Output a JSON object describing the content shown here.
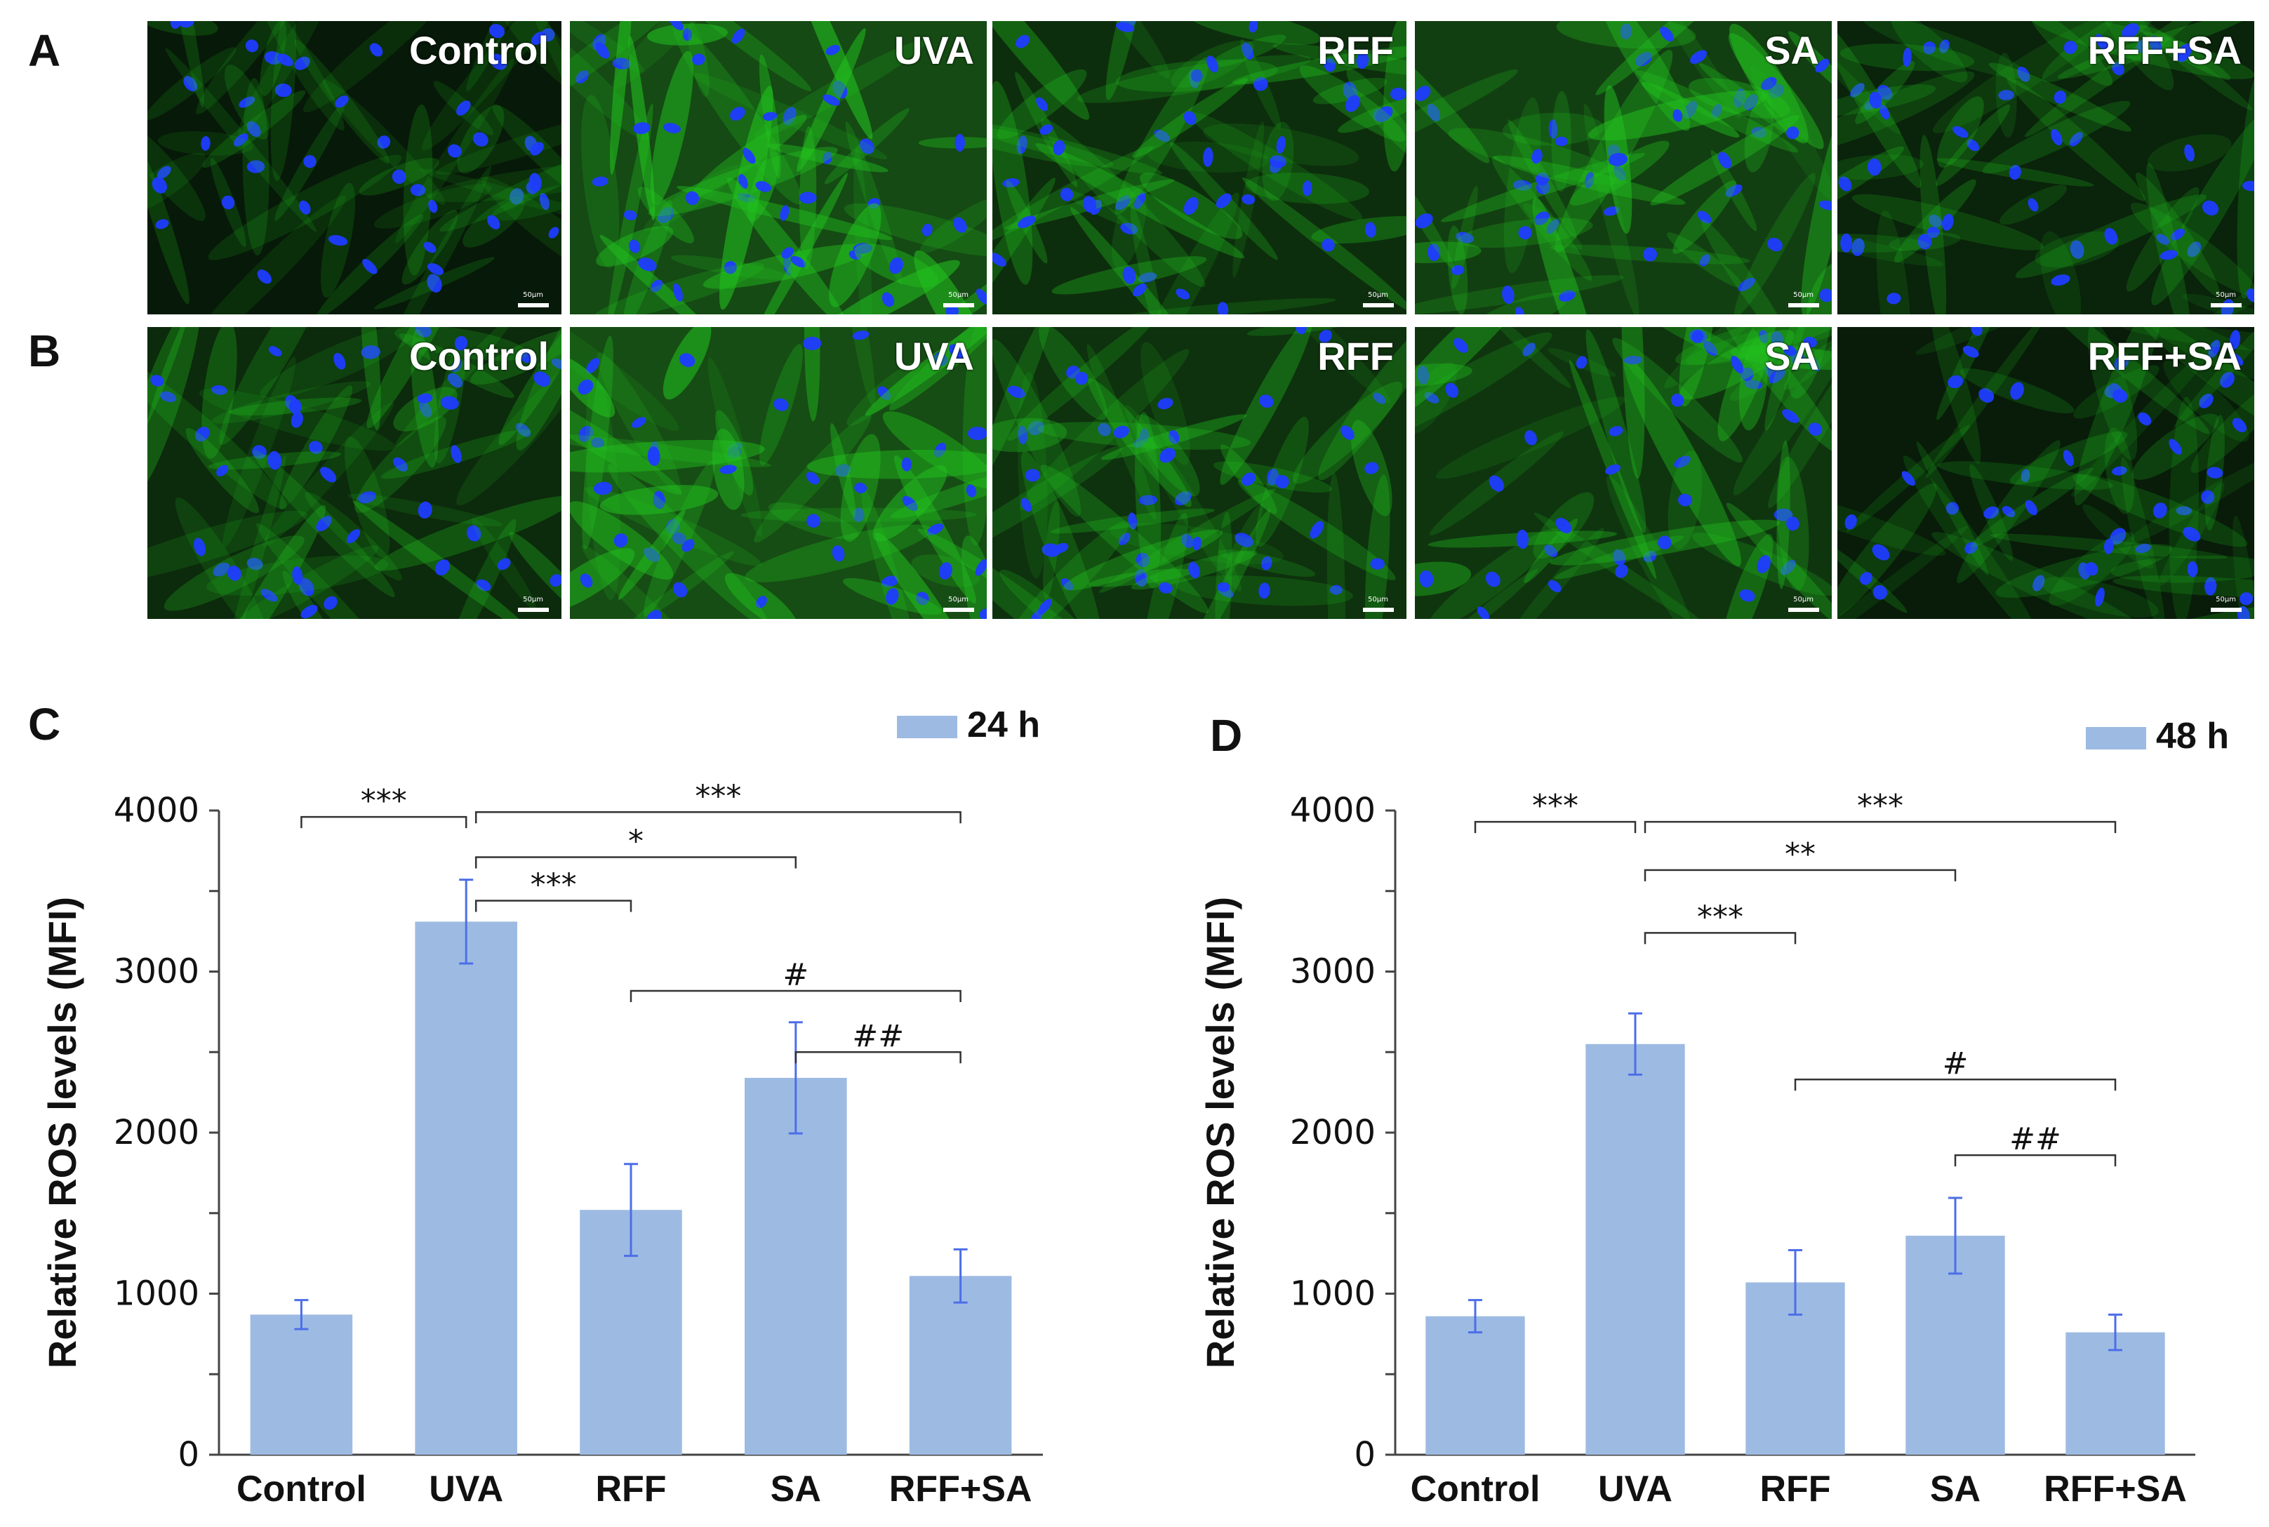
{
  "panels": {
    "A": "A",
    "B": "B",
    "C": "C",
    "D": "D"
  },
  "micrographs": {
    "scale_label": "50μm",
    "rows": [
      {
        "panel": "A",
        "images": [
          {
            "label": "Control",
            "green_intensity": 0.15,
            "seed": 11
          },
          {
            "label": "UVA",
            "green_intensity": 0.85,
            "seed": 23
          },
          {
            "label": "RFF",
            "green_intensity": 0.45,
            "seed": 37
          },
          {
            "label": "SA",
            "green_intensity": 0.7,
            "seed": 41
          },
          {
            "label": "RFF+SA",
            "green_intensity": 0.3,
            "seed": 53
          }
        ]
      },
      {
        "panel": "B",
        "images": [
          {
            "label": "Control",
            "green_intensity": 0.4,
            "seed": 61
          },
          {
            "label": "UVA",
            "green_intensity": 0.9,
            "seed": 73
          },
          {
            "label": "RFF",
            "green_intensity": 0.5,
            "seed": 89
          },
          {
            "label": "SA",
            "green_intensity": 0.55,
            "seed": 97
          },
          {
            "label": "RFF+SA",
            "green_intensity": 0.2,
            "seed": 103
          }
        ]
      }
    ],
    "colors": {
      "nuclei": "#1f3cff",
      "cytoplasm": "#22c21f",
      "background": "#020a02"
    }
  },
  "chart_data": [
    {
      "panel": "C",
      "type": "bar",
      "categories": [
        "Control",
        "UVA",
        "RFF",
        "SA",
        "RFF+SA"
      ],
      "series": [
        {
          "name": "24 h",
          "values": [
            870,
            3310,
            1520,
            2340,
            1110
          ],
          "errors": [
            90,
            260,
            285,
            345,
            165
          ]
        }
      ],
      "ylabel": "Relative ROS levels (MFI)",
      "ylim": [
        0,
        4000
      ],
      "yticks": [
        0,
        1000,
        2000,
        3000,
        4000
      ],
      "legend": "top-right",
      "bar_color": "#9dbbe2",
      "error_color": "#4d6ee8",
      "annotations": [
        {
          "from": 0,
          "to": 1,
          "label": "***",
          "y": 3960
        },
        {
          "from": 1,
          "to": 4,
          "label": "***",
          "y": 3990
        },
        {
          "from": 1,
          "to": 3,
          "label": "*",
          "y": 3710
        },
        {
          "from": 1,
          "to": 2,
          "label": "***",
          "y": 3440
        },
        {
          "from": 2,
          "to": 4,
          "label": "#",
          "y": 2880
        },
        {
          "from": 3,
          "to": 4,
          "label": "##",
          "y": 2500
        }
      ]
    },
    {
      "panel": "D",
      "type": "bar",
      "categories": [
        "Control",
        "UVA",
        "RFF",
        "SA",
        "RFF+SA"
      ],
      "series": [
        {
          "name": "48 h",
          "values": [
            860,
            2550,
            1070,
            1360,
            760
          ],
          "errors": [
            100,
            190,
            200,
            235,
            110
          ]
        }
      ],
      "ylabel": "Relative ROS levels (MFI)",
      "ylim": [
        0,
        4000
      ],
      "yticks": [
        0,
        1000,
        2000,
        3000,
        4000
      ],
      "legend": "top-right",
      "bar_color": "#9dbbe2",
      "error_color": "#4d6ee8",
      "annotations": [
        {
          "from": 0,
          "to": 1,
          "label": "***",
          "y": 3930
        },
        {
          "from": 1,
          "to": 4,
          "label": "***",
          "y": 3930
        },
        {
          "from": 1,
          "to": 3,
          "label": "**",
          "y": 3630
        },
        {
          "from": 1,
          "to": 2,
          "label": "***",
          "y": 3240
        },
        {
          "from": 2,
          "to": 4,
          "label": "#",
          "y": 2330
        },
        {
          "from": 3,
          "to": 4,
          "label": "##",
          "y": 1860
        }
      ]
    }
  ]
}
